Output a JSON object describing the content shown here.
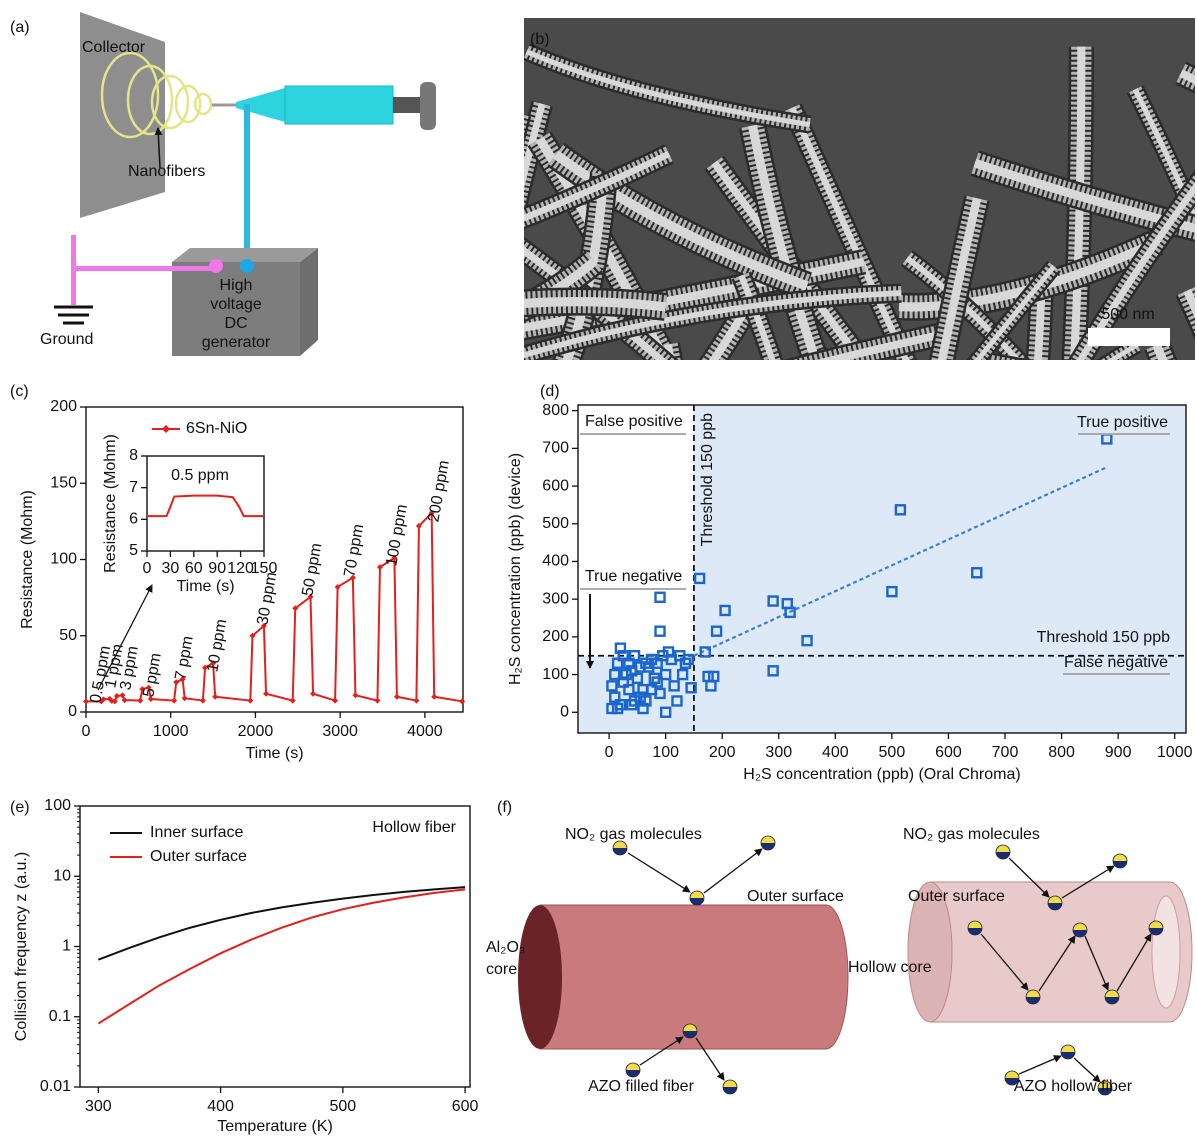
{
  "panel_a": {
    "label": "(a)",
    "collector": "Collector",
    "nanofibers": "Nanofibers",
    "generator": [
      "High",
      "voltage",
      "DC",
      "generator"
    ],
    "ground": "Ground"
  },
  "panel_b": {
    "label": "(b)",
    "scale_bar": "500 nm"
  },
  "chart_data": [
    {
      "type": "line",
      "label": "(c)",
      "xlabel": "Time (s)",
      "ylabel": "Resistance (Mohm)",
      "xlim": [
        0,
        4450
      ],
      "ylim": [
        0,
        200
      ],
      "xticks": [
        0,
        1000,
        2000,
        3000,
        4000
      ],
      "yticks": [
        0,
        50,
        100,
        150,
        200
      ],
      "series": [
        {
          "name": "6Sn-NiO",
          "color": "#e3201b",
          "x": [
            0,
            180,
            205,
            280,
            305,
            340,
            365,
            430,
            455,
            640,
            665,
            740,
            765,
            1040,
            1065,
            1140,
            1165,
            1380,
            1405,
            1500,
            1525,
            1940,
            1965,
            2100,
            2125,
            2440,
            2470,
            2650,
            2680,
            2940,
            2970,
            3150,
            3180,
            3440,
            3470,
            3640,
            3670,
            3900,
            3930,
            4080,
            4110,
            4440
          ],
          "values": [
            7,
            7,
            8.3,
            8.6,
            7.3,
            7,
            10.5,
            11,
            7.8,
            7.5,
            15,
            16,
            8.5,
            7.5,
            19.5,
            21.5,
            9,
            7.5,
            29,
            32,
            10,
            7.5,
            50,
            56.5,
            12,
            7.5,
            68,
            75.5,
            12,
            7.5,
            82,
            88,
            11,
            7.5,
            95,
            101,
            10,
            7.5,
            122,
            130.5,
            10,
            7
          ]
        }
      ],
      "annotations": [
        "0.5 ppm",
        "1 ppm",
        "3 ppm",
        "5 ppm",
        "7 ppm",
        "10 ppm",
        "30 ppm",
        "50 ppm",
        "70 ppm",
        "100 ppm",
        "200 ppm"
      ]
    },
    {
      "type": "line",
      "xlabel": "Time (s)",
      "ylabel": "Resistance (Mohm)",
      "xlim": [
        0,
        150
      ],
      "ylim": [
        5,
        8
      ],
      "xticks": [
        0,
        30,
        60,
        90,
        120,
        150
      ],
      "yticks": [
        5,
        6,
        7,
        8
      ],
      "series": [
        {
          "color": "#e3201b",
          "x": [
            0,
            25,
            30,
            35,
            60,
            90,
            110,
            118,
            124,
            150
          ],
          "values": [
            6.1,
            6.1,
            6.4,
            6.72,
            6.75,
            6.75,
            6.7,
            6.4,
            6.1,
            6.1
          ]
        }
      ],
      "annotations": [
        "0.5 ppm"
      ]
    },
    {
      "type": "scatter",
      "label": "(d)",
      "xlabel": "H₂S concentration (ppb) (Oral Chroma)",
      "ylabel": "H₂S concentration (ppb) (device)",
      "xlim": [
        -55,
        1020
      ],
      "ylim": [
        -55,
        815
      ],
      "xticks": [
        0,
        100,
        200,
        300,
        400,
        500,
        600,
        700,
        800,
        900,
        1000
      ],
      "yticks": [
        0,
        100,
        200,
        300,
        400,
        500,
        600,
        700,
        800
      ],
      "color": "#1a66cc",
      "threshold": 150,
      "x": [
        880,
        515,
        650,
        500,
        290,
        315,
        320,
        350,
        205,
        160,
        90,
        90,
        190,
        170,
        290,
        175,
        5,
        10,
        5,
        15,
        20,
        25,
        30,
        35,
        40,
        45,
        50,
        55,
        60,
        65,
        70,
        75,
        80,
        85,
        90,
        95,
        100,
        100,
        105,
        110,
        115,
        120,
        125,
        130,
        135,
        140,
        145,
        180,
        185,
        15,
        25,
        35,
        55,
        45,
        65,
        10,
        20,
        75,
        85,
        60,
        40
      ],
      "values": [
        725,
        537,
        370,
        320,
        295,
        288,
        265,
        190,
        270,
        355,
        305,
        215,
        215,
        160,
        110,
        95,
        10,
        40,
        70,
        130,
        170,
        150,
        100,
        60,
        20,
        150,
        90,
        40,
        10,
        130,
        120,
        60,
        90,
        130,
        50,
        150,
        0,
        100,
        160,
        140,
        70,
        30,
        150,
        100,
        130,
        140,
        65,
        70,
        95,
        10,
        80,
        130,
        120,
        30,
        30,
        100,
        20,
        140,
        80,
        60,
        110
      ],
      "fit": {
        "x": [
          150,
          880
        ],
        "values": [
          150,
          650
        ]
      },
      "annotations": [
        "False positive",
        "True positive",
        "True negative",
        "False negative",
        "Threshold 150 ppb",
        "Threshold 150 ppb"
      ]
    },
    {
      "type": "line",
      "label": "(e)",
      "xlabel": "Temperature (K)",
      "ylabel": "Collision frequency z (a.u.)",
      "ylog": true,
      "xlim": [
        285,
        604
      ],
      "ylim": [
        0.01,
        100
      ],
      "xticks": [
        300,
        400,
        500,
        600
      ],
      "yticks": [
        0.01,
        0.1,
        1,
        10,
        100
      ],
      "series": [
        {
          "name": "Inner surface",
          "color": "#111111",
          "x": [
            300,
            325,
            350,
            375,
            400,
            425,
            450,
            475,
            500,
            525,
            550,
            575,
            600
          ],
          "values": [
            0.65,
            0.95,
            1.35,
            1.85,
            2.4,
            3.0,
            3.6,
            4.2,
            4.8,
            5.4,
            6.0,
            6.5,
            7.0
          ]
        },
        {
          "name": "Outer surface",
          "color": "#e0201b",
          "x": [
            300,
            325,
            350,
            375,
            400,
            425,
            450,
            475,
            500,
            525,
            550,
            575,
            600
          ],
          "values": [
            0.08,
            0.15,
            0.28,
            0.48,
            0.8,
            1.25,
            1.85,
            2.6,
            3.4,
            4.2,
            5.0,
            5.8,
            6.5
          ]
        }
      ],
      "annotations": [
        "Hollow fiber"
      ]
    }
  ],
  "panel_f": {
    "label": "(f)",
    "left": {
      "gas": "NO₂ gas molecules",
      "surface": "Outer surface",
      "core": [
        "Al₂O₃",
        "core"
      ],
      "caption": "AZO filled fiber"
    },
    "right": {
      "gas": "NO₂ gas molecules",
      "surface": "Outer surface",
      "core": "Hollow core",
      "caption": "AZO hollow fiber"
    }
  }
}
